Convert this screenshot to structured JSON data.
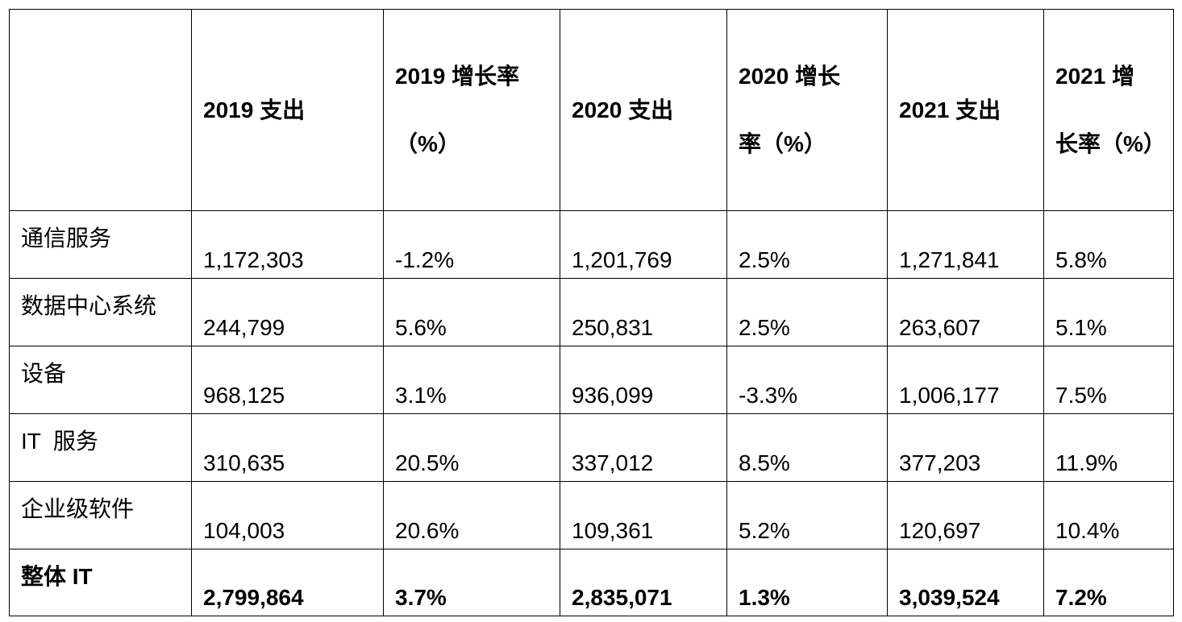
{
  "table": {
    "headers": [
      "",
      "2019 支出",
      "2019 增长率（%）",
      "2020 支出",
      "2020 增长率（%）",
      "2021 支出",
      "2021 增长率（%）"
    ],
    "rows": [
      {
        "label": "通信服务",
        "values": [
          "1,172,303",
          "-1.2%",
          "1,201,769",
          "2.5%",
          "1,271,841",
          "5.8%"
        ]
      },
      {
        "label": "数据中心系统",
        "values": [
          "244,799",
          "5.6%",
          "250,831",
          "2.5%",
          "263,607",
          "5.1%"
        ]
      },
      {
        "label": "设备",
        "values": [
          "968,125",
          "3.1%",
          "936,099",
          "-3.3%",
          "1,006,177",
          "7.5%"
        ]
      },
      {
        "label": "IT  服务",
        "values": [
          "310,635",
          "20.5%",
          "337,012",
          "8.5%",
          "377,203",
          "11.9%"
        ]
      },
      {
        "label": "企业级软件",
        "values": [
          "104,003",
          "20.6%",
          "109,361",
          "5.2%",
          "120,697",
          "10.4%"
        ]
      },
      {
        "label": "整体 IT",
        "values": [
          "2,799,864",
          "3.7%",
          "2,835,071",
          "1.3%",
          "3,039,524",
          "7.2%"
        ]
      }
    ]
  }
}
